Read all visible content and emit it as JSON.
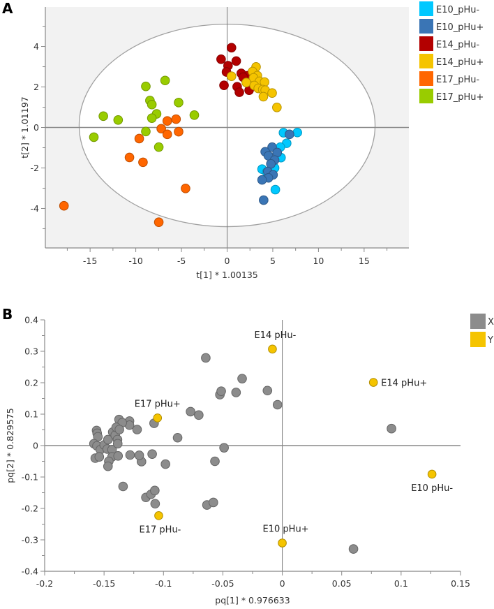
{
  "chart_data": [
    {
      "type": "scatter",
      "panel_label": "A",
      "title": "",
      "xlabel": "t[1] * 1.00135",
      "ylabel": "t[2] * 1.01197",
      "xlim": [
        -19.9,
        19.9
      ],
      "ylim": [
        -5.95,
        5.95
      ],
      "xticks": [
        -15,
        -10,
        -5,
        0,
        5,
        10,
        15
      ],
      "yticks": [
        -4,
        -2,
        0,
        2,
        4
      ],
      "ellipse": {
        "center": [
          0,
          0.1
        ],
        "radii": [
          16.2,
          5.0
        ]
      },
      "legend_position": "right",
      "series": [
        {
          "name": "E10_pHu-",
          "color": "#00c8ff",
          "points": [
            [
              6.17,
              -0.26
            ],
            [
              7.69,
              -0.25
            ],
            [
              6.52,
              -0.78
            ],
            [
              5.83,
              -0.97
            ],
            [
              5.9,
              -1.49
            ],
            [
              5.2,
              -2.0
            ],
            [
              3.83,
              -2.06
            ],
            [
              4.34,
              -2.21
            ],
            [
              5.28,
              -3.07
            ]
          ]
        },
        {
          "name": "E10_pHu+",
          "color": "#3a75b5",
          "points": [
            [
              6.83,
              -0.34
            ],
            [
              4.93,
              -0.97
            ],
            [
              4.17,
              -1.2
            ],
            [
              5.48,
              -1.24
            ],
            [
              4.52,
              -1.4
            ],
            [
              5.2,
              -1.61
            ],
            [
              4.79,
              -1.8
            ],
            [
              4.45,
              -2.18
            ],
            [
              5.03,
              -2.34
            ],
            [
              4.52,
              -2.49
            ],
            [
              3.83,
              -2.59
            ],
            [
              4.0,
              -3.59
            ]
          ]
        },
        {
          "name": "E14_pHu-",
          "color": "#b30000",
          "points": [
            [
              0.48,
              3.94
            ],
            [
              -0.66,
              3.37
            ],
            [
              1.0,
              3.28
            ],
            [
              0.1,
              3.05
            ],
            [
              -0.07,
              2.74
            ],
            [
              1.55,
              2.67
            ],
            [
              2.28,
              2.56
            ],
            [
              1.76,
              2.48
            ],
            [
              -0.34,
              2.08
            ],
            [
              1.1,
              2.01
            ],
            [
              1.34,
              1.74
            ],
            [
              2.41,
              1.84
            ]
          ]
        },
        {
          "name": "E14_pHu+",
          "color": "#f5c400",
          "points": [
            [
              0.48,
              2.53
            ],
            [
              3.17,
              2.99
            ],
            [
              2.79,
              2.76
            ],
            [
              3.31,
              2.56
            ],
            [
              2.9,
              2.45
            ],
            [
              2.1,
              2.22
            ],
            [
              3.55,
              2.28
            ],
            [
              4.1,
              2.24
            ],
            [
              2.97,
              2.07
            ],
            [
              3.41,
              1.93
            ],
            [
              3.9,
              1.87
            ],
            [
              4.17,
              1.84
            ],
            [
              4.93,
              1.7
            ],
            [
              3.97,
              1.52
            ],
            [
              5.45,
              0.99
            ]
          ]
        },
        {
          "name": "E17_pHu-",
          "color": "#ff6600",
          "points": [
            [
              -17.86,
              -3.87
            ],
            [
              -7.48,
              -4.68
            ],
            [
              -4.55,
              -3.01
            ],
            [
              -10.69,
              -1.48
            ],
            [
              -9.21,
              -1.72
            ],
            [
              -9.62,
              -0.55
            ],
            [
              -7.21,
              -0.06
            ],
            [
              -6.55,
              -0.34
            ],
            [
              -5.31,
              -0.21
            ],
            [
              -6.55,
              0.32
            ],
            [
              -5.59,
              0.41
            ]
          ]
        },
        {
          "name": "E17_pHu+",
          "color": "#99cc00",
          "points": [
            [
              -6.79,
              2.32
            ],
            [
              -8.9,
              2.03
            ],
            [
              -8.45,
              1.33
            ],
            [
              -8.24,
              1.13
            ],
            [
              -5.31,
              1.23
            ],
            [
              -13.55,
              0.56
            ],
            [
              -11.93,
              0.37
            ],
            [
              -7.72,
              0.67
            ],
            [
              -8.24,
              0.46
            ],
            [
              -3.59,
              0.61
            ],
            [
              -8.9,
              -0.2
            ],
            [
              -7.48,
              -0.97
            ],
            [
              -14.59,
              -0.48
            ]
          ]
        }
      ]
    },
    {
      "type": "scatter",
      "panel_label": "B",
      "title": "",
      "xlabel": "pq[1] * 0.976633",
      "ylabel": "pq[2] * 0.829575",
      "xlim": [
        -0.2,
        0.15
      ],
      "ylim": [
        -0.4,
        0.4
      ],
      "xticks": [
        -0.2,
        -0.15,
        -0.1,
        -0.05,
        0,
        0.05,
        0.1,
        0.15
      ],
      "xtick_labels": [
        "-0.2",
        "-0.15",
        "-0.1",
        "-0.05",
        "0",
        "0.05",
        "0.1",
        "0.15"
      ],
      "yticks": [
        0.4,
        0.3,
        0.2,
        0.1,
        0,
        -0.1,
        -0.2,
        -0.3,
        -0.4
      ],
      "ytick_labels": [
        "0.4",
        "0.3",
        "0.2",
        "0.1",
        "0",
        "-0.1",
        "-0.2",
        "-0.3",
        "-0.4"
      ],
      "legend_position": "top-right",
      "series": [
        {
          "name": "X",
          "color": "#8c8c8c",
          "points": [
            [
              -0.0644,
              0.279
            ],
            [
              -0.0338,
              0.213
            ],
            [
              -0.0525,
              0.162
            ],
            [
              -0.0514,
              0.173
            ],
            [
              -0.0389,
              0.169
            ],
            [
              -0.0125,
              0.175
            ],
            [
              -0.004,
              0.13
            ],
            [
              -0.0772,
              0.108
            ],
            [
              -0.0703,
              0.097
            ],
            [
              0.0919,
              0.054
            ],
            [
              -0.1079,
              0.071
            ],
            [
              -0.0881,
              0.025
            ],
            [
              -0.049,
              -0.007
            ],
            [
              -0.0567,
              -0.05
            ],
            [
              -0.0983,
              -0.059
            ],
            [
              -0.1095,
              -0.027
            ],
            [
              -0.1185,
              -0.051
            ],
            [
              -0.1204,
              -0.031
            ],
            [
              -0.1281,
              -0.03
            ],
            [
              -0.1222,
              0.051
            ],
            [
              -0.1286,
              0.078
            ],
            [
              -0.1286,
              0.065
            ],
            [
              -0.134,
              -0.13
            ],
            [
              -0.1148,
              -0.165
            ],
            [
              -0.1105,
              -0.155
            ],
            [
              -0.1073,
              -0.143
            ],
            [
              -0.107,
              -0.185
            ],
            [
              -0.0634,
              -0.189
            ],
            [
              -0.058,
              -0.181
            ],
            [
              0.0599,
              -0.329
            ],
            [
              -0.1563,
              0.048
            ],
            [
              -0.1558,
              0.039
            ],
            [
              -0.1552,
              0.028
            ],
            [
              -0.1585,
              0.006
            ],
            [
              -0.156,
              -0.001
            ],
            [
              -0.1531,
              -0.013
            ],
            [
              -0.1574,
              -0.04
            ],
            [
              -0.154,
              -0.036
            ],
            [
              -0.1499,
              0.002
            ],
            [
              -0.1473,
              -0.011
            ],
            [
              -0.1467,
              0.019
            ],
            [
              -0.1433,
              -0.013
            ],
            [
              -0.1433,
              -0.036
            ],
            [
              -0.146,
              -0.05
            ],
            [
              -0.1467,
              -0.066
            ],
            [
              -0.1427,
              0.043
            ],
            [
              -0.1406,
              0.033
            ],
            [
              -0.1387,
              0.019
            ],
            [
              -0.1385,
              0.006
            ],
            [
              -0.1382,
              -0.033
            ],
            [
              -0.1374,
              0.083
            ],
            [
              -0.1347,
              0.073
            ],
            [
              -0.1398,
              0.058
            ],
            [
              -0.1371,
              0.051
            ]
          ]
        },
        {
          "name": "Y",
          "color": "#f5c400",
          "points": [
            [
              -0.0083,
              0.307
            ],
            [
              0.0767,
              0.201
            ],
            [
              -0.105,
              0.088
            ],
            [
              -0.104,
              -0.223
            ],
            [
              0,
              -0.31
            ],
            [
              0.126,
              -0.091
            ]
          ],
          "point_labels": [
            "E14 pHu-",
            "E14 pHu+",
            "E17 pHu+",
            "E17 pHu-",
            "E10 pHu+",
            "E10 pHu-"
          ]
        }
      ]
    }
  ]
}
